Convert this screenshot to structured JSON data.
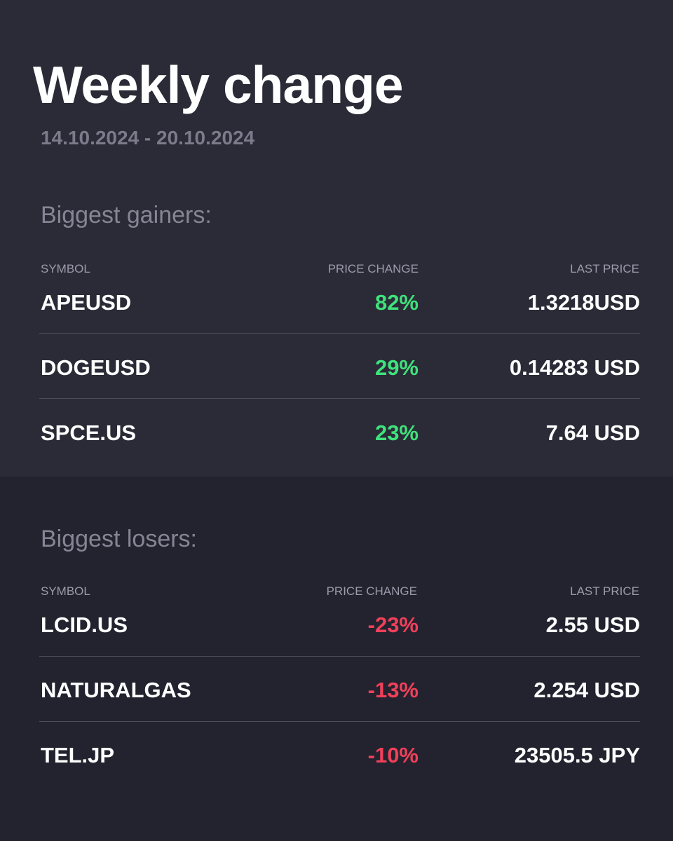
{
  "title": "Weekly change",
  "date_range": "14.10.2024 - 20.10.2024",
  "gainers": {
    "heading": "Biggest gainers:",
    "columns": {
      "symbol": "SYMBOL",
      "change": "PRICE CHANGE",
      "price": "LAST PRICE"
    },
    "rows": [
      {
        "symbol": "APEUSD",
        "change": "82%",
        "price": "1.3218USD"
      },
      {
        "symbol": "DOGEUSD",
        "change": "29%",
        "price": "0.14283 USD"
      },
      {
        "symbol": "SPCE.US",
        "change": "23%",
        "price": "7.64 USD"
      }
    ]
  },
  "losers": {
    "heading": "Biggest losers:",
    "columns": {
      "symbol": "SYMBOL",
      "change": "PRICE CHANGE",
      "price": "LAST PRICE"
    },
    "rows": [
      {
        "symbol": "LCID.US",
        "change": "-23%",
        "price": "2.55 USD"
      },
      {
        "symbol": "NATURALGAS",
        "change": "-13%",
        "price": "2.254 USD"
      },
      {
        "symbol": "TEL.JP",
        "change": "-10%",
        "price": "23505.5 JPY"
      }
    ]
  },
  "colors": {
    "positive": "#3fe27c",
    "negative": "#f0405a",
    "background_top": "#2b2b37",
    "background_bottom": "#23232f"
  }
}
